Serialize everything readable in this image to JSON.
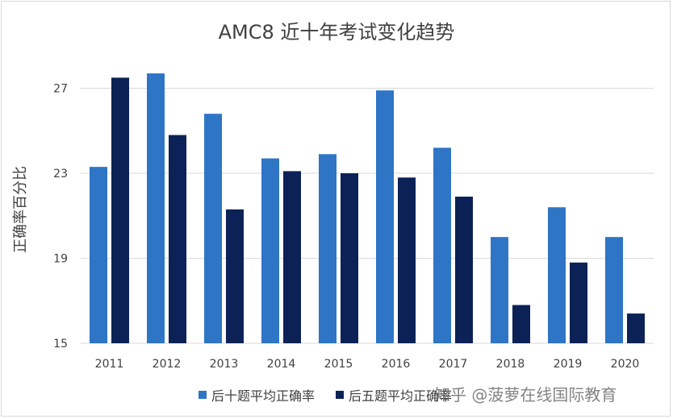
{
  "watermark": "知乎 @菠萝在线国际教育",
  "chart_data": {
    "type": "bar",
    "title": "AMC8 近十年考试变化趋势",
    "xlabel": "",
    "ylabel": "正确率百分比",
    "categories": [
      "2011",
      "2012",
      "2013",
      "2014",
      "2015",
      "2016",
      "2017",
      "2018",
      "2019",
      "2020"
    ],
    "series": [
      {
        "name": "后十题平均正确率",
        "color": "#2e75c6",
        "values": [
          23.3,
          27.7,
          25.8,
          23.7,
          23.9,
          26.9,
          24.2,
          20.0,
          21.4,
          20.0
        ]
      },
      {
        "name": "后五题平均正确率",
        "color": "#0c2257",
        "values": [
          27.5,
          24.8,
          21.3,
          23.1,
          23.0,
          22.8,
          21.9,
          16.8,
          18.8,
          16.4
        ]
      }
    ],
    "ylim": [
      15,
      28.5
    ],
    "yticks": [
      15,
      19,
      23,
      27
    ],
    "grid": true,
    "legend_position": "bottom"
  }
}
